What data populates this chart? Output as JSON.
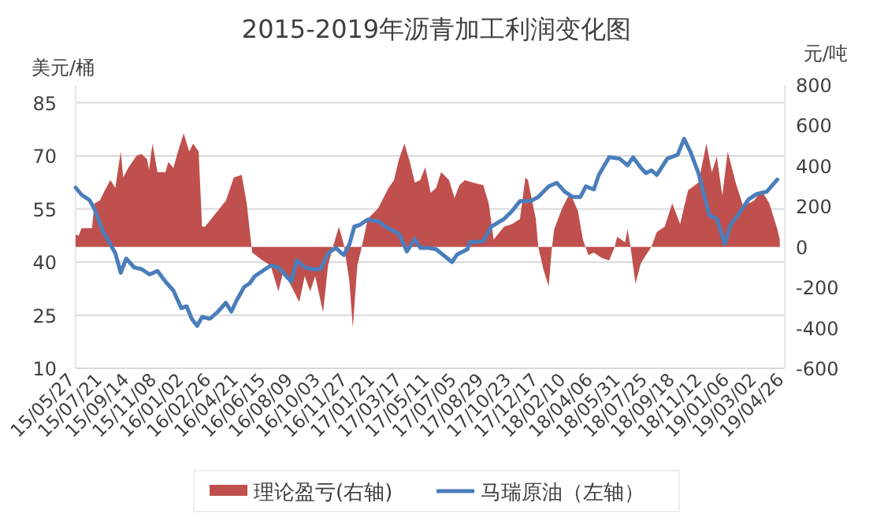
{
  "chart_data": {
    "type": "line",
    "title": "2015-2019年沥青加工利润变化图",
    "ylabel": "美元/桶",
    "y2label": "元/吨",
    "xlim": [
      "2015-05-27",
      "2019-04-26"
    ],
    "xticks": [
      {
        "value": "2015-05-27",
        "label": "15/05/27"
      },
      {
        "value": "2015-07-21",
        "label": "15/07/21"
      },
      {
        "value": "2015-09-14",
        "label": "15/09/14"
      },
      {
        "value": "2015-11-08",
        "label": "15/11/08"
      },
      {
        "value": "2016-01-02",
        "label": "16/01/02"
      },
      {
        "value": "2016-02-26",
        "label": "16/02/26"
      },
      {
        "value": "2016-04-21",
        "label": "16/04/21"
      },
      {
        "value": "2016-06-15",
        "label": "16/06/15"
      },
      {
        "value": "2016-08-09",
        "label": "16/08/09"
      },
      {
        "value": "2016-10-03",
        "label": "16/10/03"
      },
      {
        "value": "2016-11-27",
        "label": "16/11/27"
      },
      {
        "value": "2017-01-21",
        "label": "17/01/21"
      },
      {
        "value": "2017-03-17",
        "label": "17/03/17"
      },
      {
        "value": "2017-05-11",
        "label": "17/05/11"
      },
      {
        "value": "2017-07-05",
        "label": "17/07/05"
      },
      {
        "value": "2017-08-29",
        "label": "17/08/29"
      },
      {
        "value": "2017-10-23",
        "label": "17/10/23"
      },
      {
        "value": "2017-12-17",
        "label": "17/12/17"
      },
      {
        "value": "2018-02-10",
        "label": "18/02/10"
      },
      {
        "value": "2018-04-06",
        "label": "18/04/06"
      },
      {
        "value": "2018-05-31",
        "label": "18/05/31"
      },
      {
        "value": "2018-07-25",
        "label": "18/07/25"
      },
      {
        "value": "2018-09-18",
        "label": "18/09/18"
      },
      {
        "value": "2018-11-12",
        "label": "18/11/12"
      },
      {
        "value": "2019-01-06",
        "label": "19/01/06"
      },
      {
        "value": "2019-03-02",
        "label": "19/03/02"
      },
      {
        "value": "2019-04-26",
        "label": "19/04/26"
      }
    ],
    "ylim": [
      10,
      90
    ],
    "yticks": [
      10,
      25,
      40,
      55,
      70,
      85
    ],
    "y2lim": [
      -600,
      800
    ],
    "y2ticks": [
      -600,
      -400,
      -200,
      0,
      200,
      400,
      600,
      800
    ],
    "grid": "y",
    "legend": "bottom",
    "series": [
      {
        "name": "理论盈亏(右轴)",
        "type": "area",
        "axis": "y2",
        "color": "#c0504d",
        "x": [
          "2015-05-27",
          "2015-06-02",
          "2015-06-08",
          "2015-06-29",
          "2015-07-04",
          "2015-07-15",
          "2015-07-25",
          "2015-08-05",
          "2015-08-15",
          "2015-08-26",
          "2015-08-31",
          "2015-09-11",
          "2015-09-27",
          "2015-10-07",
          "2015-10-18",
          "2015-10-22",
          "2015-10-29",
          "2015-11-08",
          "2015-11-24",
          "2015-11-30",
          "2015-12-10",
          "2015-12-21",
          "2015-12-31",
          "2016-01-11",
          "2016-01-19",
          "2016-01-30",
          "2016-02-06",
          "2016-02-12",
          "2016-03-04",
          "2016-03-25",
          "2016-04-10",
          "2016-04-26",
          "2016-05-06",
          "2016-05-17",
          "2016-06-07",
          "2016-06-23",
          "2016-07-09",
          "2016-07-19",
          "2016-08-04",
          "2016-08-20",
          "2016-08-31",
          "2016-09-11",
          "2016-09-21",
          "2016-10-07",
          "2016-10-17",
          "2016-10-28",
          "2016-11-08",
          "2016-11-18",
          "2016-11-29",
          "2016-12-06",
          "2016-12-15",
          "2016-12-25",
          "2017-01-05",
          "2017-01-26",
          "2017-02-16",
          "2017-02-27",
          "2017-03-09",
          "2017-03-20",
          "2017-03-31",
          "2017-04-10",
          "2017-04-21",
          "2017-05-01",
          "2017-05-12",
          "2017-05-23",
          "2017-06-02",
          "2017-06-18",
          "2017-06-29",
          "2017-07-09",
          "2017-07-20",
          "2017-08-05",
          "2017-08-26",
          "2017-09-06",
          "2017-09-16",
          "2017-10-07",
          "2017-10-23",
          "2017-11-08",
          "2017-11-19",
          "2017-11-24",
          "2017-12-10",
          "2017-12-15",
          "2017-12-26",
          "2018-01-05",
          "2018-01-11",
          "2018-01-16",
          "2018-02-01",
          "2018-02-17",
          "2018-03-05",
          "2018-03-15",
          "2018-03-26",
          "2018-04-06",
          "2018-04-21",
          "2018-05-07",
          "2018-05-18",
          "2018-05-23",
          "2018-06-08",
          "2018-06-13",
          "2018-06-19",
          "2018-06-29",
          "2018-07-10",
          "2018-07-20",
          "2018-07-31",
          "2018-08-11",
          "2018-08-27",
          "2018-09-11",
          "2018-09-27",
          "2018-10-13",
          "2018-11-03",
          "2018-11-19",
          "2018-11-30",
          "2018-12-10",
          "2018-12-21",
          "2019-01-01",
          "2019-01-17",
          "2019-02-01",
          "2019-02-23",
          "2019-03-10",
          "2019-03-26",
          "2019-04-11",
          "2019-04-16"
        ],
        "values": [
          61,
          55,
          92,
          92,
          215,
          230,
          280,
          330,
          292,
          471,
          343,
          394,
          451,
          459,
          433,
          382,
          510,
          369,
          369,
          420,
          390,
          484,
          561,
          471,
          510,
          471,
          100,
          100,
          164,
          228,
          343,
          356,
          215,
          -28,
          -67,
          -92,
          -220,
          -118,
          -195,
          -272,
          -144,
          -220,
          -144,
          -323,
          -92,
          10,
          100,
          10,
          -169,
          -400,
          -92,
          10,
          138,
          190,
          292,
          330,
          433,
          510,
          420,
          318,
          330,
          394,
          267,
          292,
          369,
          330,
          241,
          305,
          330,
          318,
          305,
          215,
          36,
          100,
          113,
          138,
          343,
          330,
          138,
          0,
          -118,
          -195,
          -15,
          87,
          190,
          267,
          177,
          36,
          -41,
          -28,
          -54,
          -67,
          0,
          49,
          23,
          87,
          0,
          -182,
          -79,
          -41,
          0,
          74,
          100,
          215,
          113,
          280,
          318,
          510,
          369,
          446,
          254,
          471,
          318,
          202,
          228,
          280,
          215,
          87,
          36
        ]
      },
      {
        "name": "马瑞原油（左轴）",
        "type": "line",
        "color": "#4a7ebb",
        "x": [
          "2015-05-27",
          "2015-06-08",
          "2015-06-24",
          "2015-07-04",
          "2015-07-20",
          "2015-08-05",
          "2015-08-15",
          "2015-08-26",
          "2015-09-06",
          "2015-09-22",
          "2015-10-07",
          "2015-10-23",
          "2015-11-08",
          "2015-11-24",
          "2015-12-10",
          "2015-12-26",
          "2016-01-06",
          "2016-01-16",
          "2016-01-27",
          "2016-02-06",
          "2016-02-22",
          "2016-03-09",
          "2016-03-25",
          "2016-04-05",
          "2016-04-15",
          "2016-05-01",
          "2016-05-12",
          "2016-05-22",
          "2016-06-07",
          "2016-06-23",
          "2016-07-09",
          "2016-07-25",
          "2016-08-04",
          "2016-08-15",
          "2016-08-31",
          "2016-09-16",
          "2016-10-02",
          "2016-10-17",
          "2016-11-02",
          "2016-11-13",
          "2016-11-18",
          "2016-11-29",
          "2016-12-09",
          "2016-12-20",
          "2017-01-05",
          "2017-01-26",
          "2017-02-16",
          "2017-03-09",
          "2017-03-25",
          "2017-04-10",
          "2017-04-21",
          "2017-05-07",
          "2017-05-23",
          "2017-06-24",
          "2017-07-04",
          "2017-07-25",
          "2017-07-30",
          "2017-08-26",
          "2017-09-11",
          "2017-10-07",
          "2017-10-23",
          "2017-11-08",
          "2017-11-29",
          "2017-12-15",
          "2018-01-05",
          "2018-01-21",
          "2018-02-06",
          "2018-02-22",
          "2018-03-10",
          "2018-03-21",
          "2018-04-06",
          "2018-04-16",
          "2018-05-07",
          "2018-05-28",
          "2018-06-13",
          "2018-06-24",
          "2018-07-10",
          "2018-07-20",
          "2018-07-31",
          "2018-08-11",
          "2018-09-01",
          "2018-09-22",
          "2018-10-05",
          "2018-10-18",
          "2018-11-03",
          "2018-11-14",
          "2018-11-25",
          "2018-12-10",
          "2018-12-26",
          "2019-01-06",
          "2019-01-27",
          "2019-02-12",
          "2019-02-28",
          "2019-03-21",
          "2019-04-11"
        ],
        "values": [
          61,
          59,
          57.5,
          55,
          49,
          45,
          42.5,
          37,
          41,
          38.5,
          38,
          36.5,
          37.5,
          34.5,
          32,
          27,
          27.5,
          24,
          22,
          24.5,
          24,
          26,
          28.5,
          26,
          29,
          33,
          34,
          36,
          37.5,
          39,
          38.5,
          36,
          34.5,
          40.5,
          38.5,
          38,
          38,
          42.5,
          44,
          42.5,
          42,
          45,
          50,
          50.5,
          52,
          51.5,
          49.5,
          48,
          43,
          46.5,
          44,
          44,
          43.6,
          40,
          42.1,
          43.6,
          45.6,
          45.9,
          50,
          52.2,
          54.4,
          57.2,
          57.2,
          58.4,
          61.4,
          62.4,
          59.9,
          58.4,
          58.4,
          61.4,
          60.5,
          64.6,
          69.6,
          69.2,
          67.3,
          69.6,
          66.6,
          65.1,
          65.9,
          64.6,
          69.2,
          70.3,
          74.8,
          71.1,
          65.1,
          59.2,
          53.2,
          52.2,
          45.1,
          50.3,
          54.4,
          57.7,
          59.2,
          59.9,
          63.3
        ]
      }
    ]
  }
}
